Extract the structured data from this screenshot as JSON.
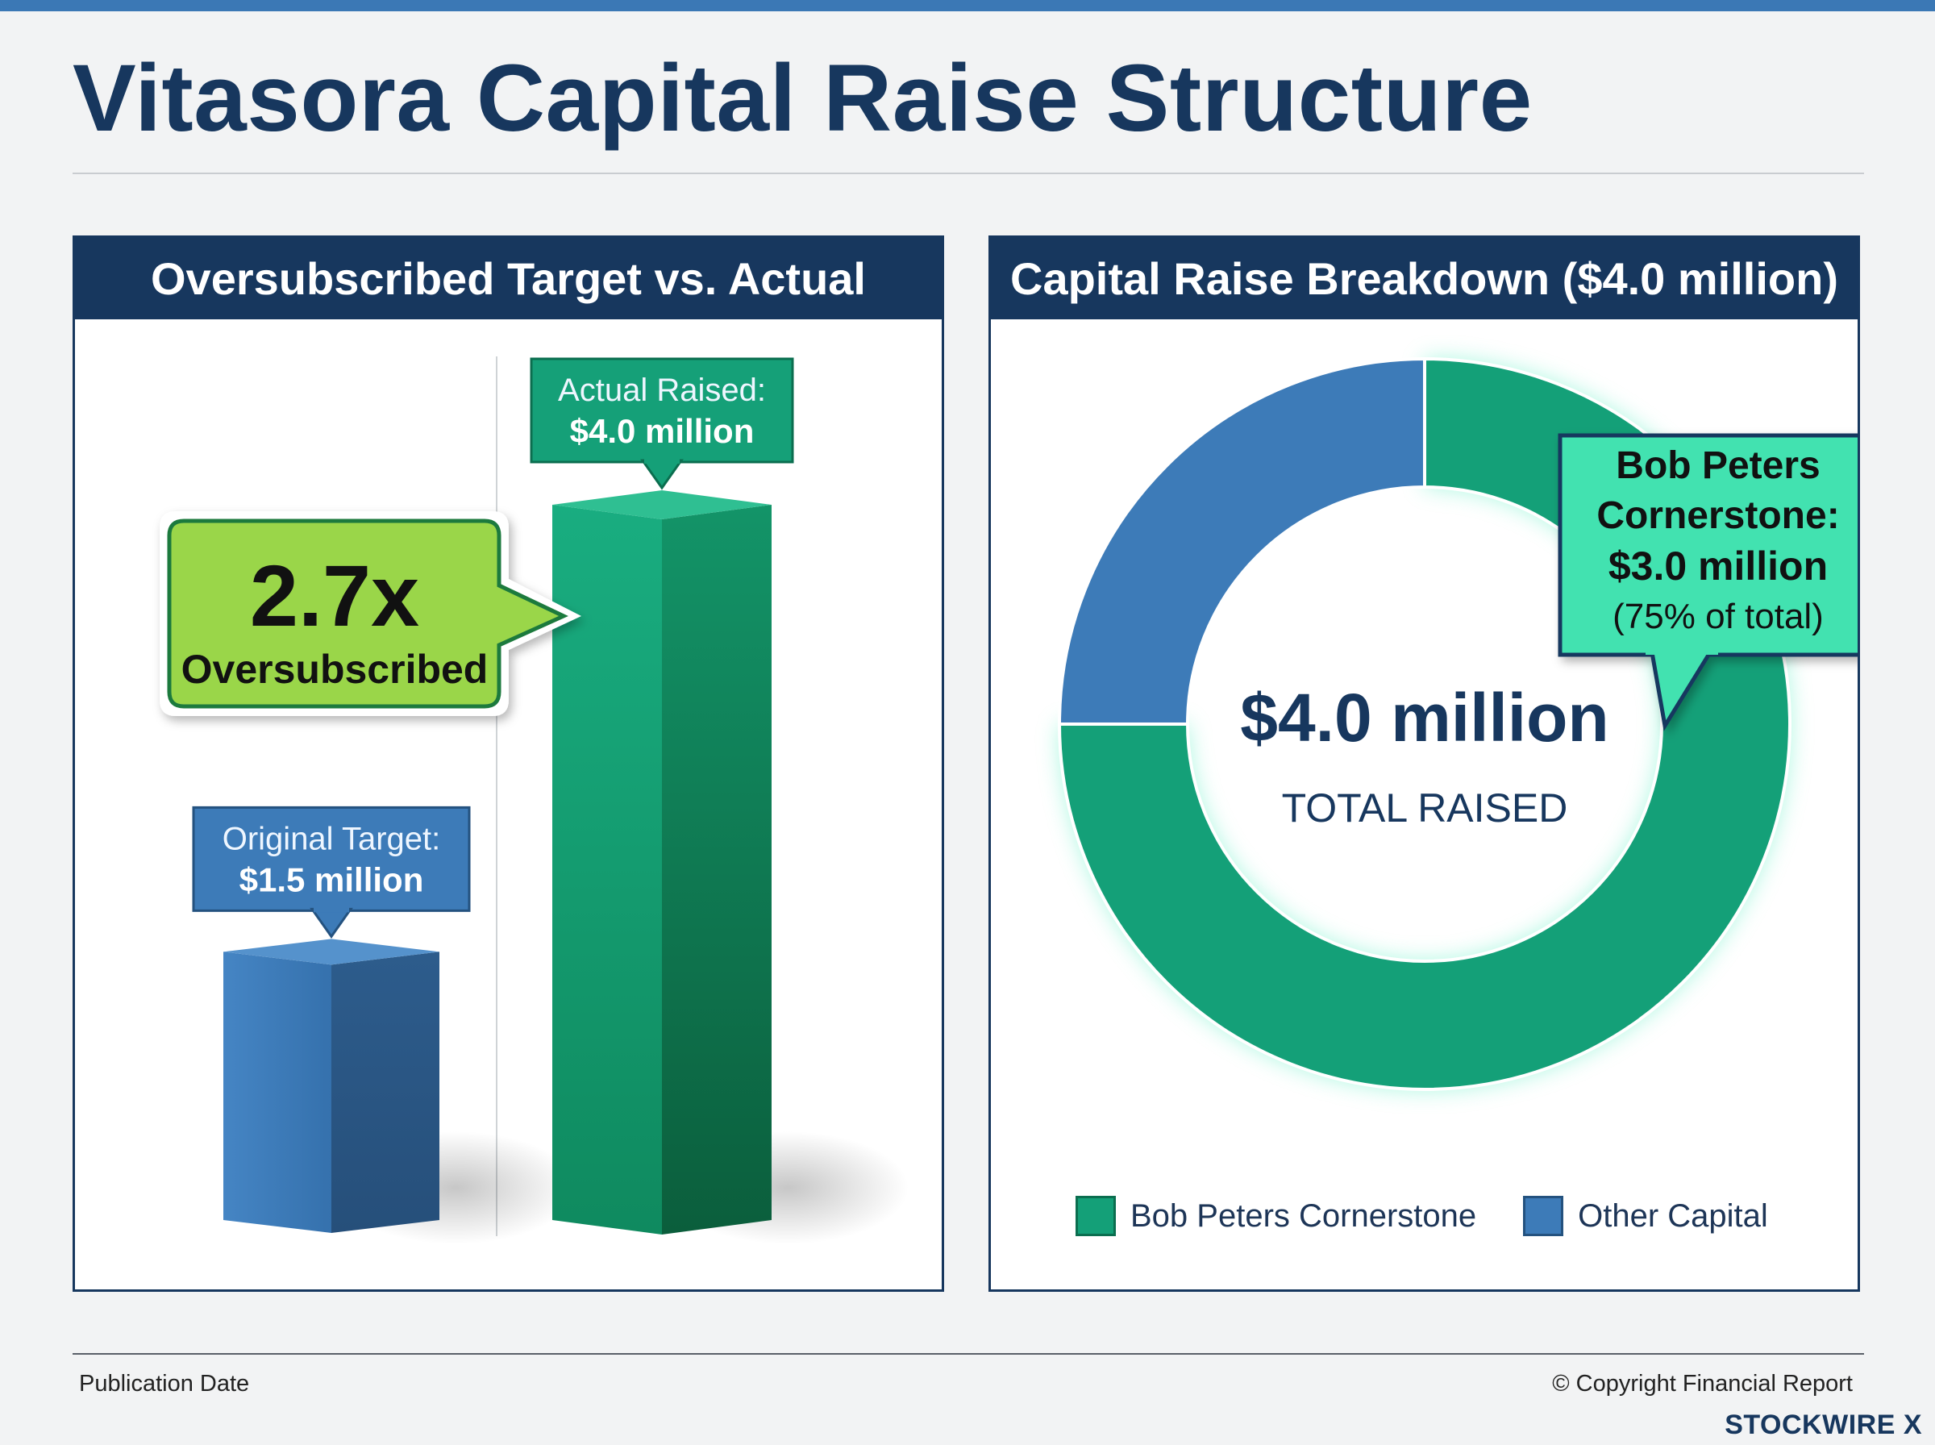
{
  "page": {
    "title": "Vitasora Capital Raise Structure",
    "footer_left": "Publication Date",
    "footer_right": "© Copyright Financial Report",
    "brand": "STOCKWIRE X"
  },
  "colors": {
    "navy": "#17375e",
    "blue": "#3d7bb8",
    "green": "#14a078",
    "lime": "#9ad64a",
    "teal_callout": "#43e2b0"
  },
  "chart_data": [
    {
      "type": "bar",
      "title": "Oversubscribed Target vs. Actual",
      "categories": [
        "Original Target",
        "Actual Raised"
      ],
      "values": [
        1.5,
        4.0
      ],
      "unit": "$ million",
      "ylim": [
        0,
        4.0
      ],
      "data_labels": [
        {
          "label": "Original Target:",
          "value": "$1.5 million"
        },
        {
          "label": "Actual Raised:",
          "value": "$4.0 million"
        }
      ],
      "callout": {
        "value": "2.7x",
        "label": "Oversubscribed"
      },
      "grid": false
    },
    {
      "type": "pie",
      "title": "Capital Raise Breakdown ($4.0 million)",
      "donut": true,
      "slices": [
        {
          "name": "Bob Peters Cornerstone",
          "value": 3.0,
          "percent": 75,
          "color": "#14a078"
        },
        {
          "name": "Other Capital",
          "value": 1.0,
          "percent": 25,
          "color": "#3d7bb8"
        }
      ],
      "center_value": "$4.0 million",
      "center_label": "TOTAL RAISED",
      "callout": {
        "line1": "Bob Peters",
        "line2": "Cornerstone:",
        "value": "$3.0 million",
        "note": "(75% of total)"
      },
      "legend": [
        "Bob Peters Cornerstone",
        "Other Capital"
      ],
      "legend_position": "bottom"
    }
  ]
}
